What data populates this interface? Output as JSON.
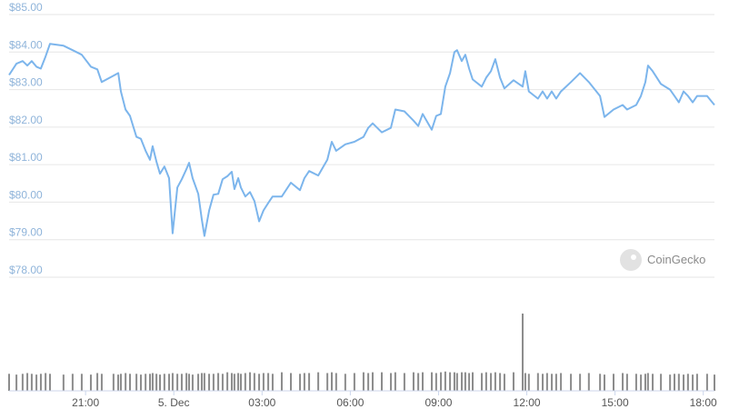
{
  "chart_data": {
    "type": "line",
    "watermark": "CoinGecko",
    "color": "#7cb5ec",
    "volume_color": "#8c8c8c",
    "grid": true,
    "xlim": [
      18.4,
      42.38
    ],
    "xticks": [
      {
        "value": 21,
        "label": "21:00"
      },
      {
        "value": 24,
        "label": "5. Dec"
      },
      {
        "value": 27,
        "label": "03:00"
      },
      {
        "value": 30,
        "label": "06:00"
      },
      {
        "value": 33,
        "label": "09:00"
      },
      {
        "value": 36,
        "label": "12:00"
      },
      {
        "value": 39,
        "label": "15:00"
      },
      {
        "value": 42,
        "label": "18:00"
      }
    ],
    "ylim": [
      78,
      85
    ],
    "yticks": [
      {
        "value": 78,
        "label": "$78.00"
      },
      {
        "value": 79,
        "label": "$79.00"
      },
      {
        "value": 80,
        "label": "$80.00"
      },
      {
        "value": 81,
        "label": "$81.00"
      },
      {
        "value": 82,
        "label": "$82.00"
      },
      {
        "value": 83,
        "label": "$83.00"
      },
      {
        "value": 84,
        "label": "$84.00"
      },
      {
        "value": 85,
        "label": "$85.00"
      }
    ],
    "vlim": [
      0,
      100
    ],
    "x": [
      18.4,
      18.65,
      18.86,
      19.02,
      19.17,
      19.33,
      19.48,
      19.64,
      19.79,
      20.25,
      20.56,
      20.87,
      21.18,
      21.4,
      21.55,
      21.95,
      22.11,
      22.2,
      22.36,
      22.51,
      22.73,
      22.88,
      23.04,
      23.19,
      23.28,
      23.41,
      23.53,
      23.68,
      23.84,
      23.96,
      24.12,
      24.27,
      24.43,
      24.52,
      24.64,
      24.83,
      24.95,
      25.04,
      25.2,
      25.35,
      25.51,
      25.66,
      25.82,
      25.97,
      26.06,
      26.19,
      26.28,
      26.43,
      26.59,
      26.74,
      26.9,
      27.05,
      27.21,
      27.36,
      27.67,
      27.98,
      28.29,
      28.44,
      28.6,
      28.91,
      29.22,
      29.37,
      29.52,
      29.83,
      30.14,
      30.45,
      30.61,
      30.76,
      31.07,
      31.38,
      31.53,
      31.84,
      32.15,
      32.31,
      32.46,
      32.77,
      32.92,
      33.08,
      33.23,
      33.39,
      33.54,
      33.63,
      33.79,
      33.91,
      34.04,
      34.16,
      34.47,
      34.62,
      34.78,
      34.93,
      35.09,
      35.24,
      35.55,
      35.86,
      35.95,
      36.07,
      36.38,
      36.54,
      36.69,
      36.85,
      37.0,
      37.16,
      37.5,
      37.81,
      38.11,
      38.49,
      38.64,
      38.95,
      39.26,
      39.41,
      39.72,
      39.88,
      40.03,
      40.12,
      40.28,
      40.56,
      40.87,
      41.02,
      41.17,
      41.33,
      41.48,
      41.64,
      41.79,
      42.13,
      42.38
    ],
    "values": [
      83.39,
      83.69,
      83.76,
      83.64,
      83.76,
      83.61,
      83.56,
      83.88,
      84.22,
      84.17,
      84.05,
      83.93,
      83.61,
      83.54,
      83.2,
      83.37,
      83.44,
      82.95,
      82.47,
      82.3,
      81.74,
      81.69,
      81.37,
      81.13,
      81.49,
      81.08,
      80.76,
      80.95,
      80.64,
      79.17,
      80.39,
      80.61,
      80.88,
      81.05,
      80.64,
      80.22,
      79.54,
      79.1,
      79.78,
      80.2,
      80.22,
      80.61,
      80.69,
      80.81,
      80.35,
      80.64,
      80.39,
      80.15,
      80.27,
      80.03,
      79.49,
      79.78,
      79.98,
      80.15,
      80.15,
      80.52,
      80.32,
      80.64,
      80.83,
      80.71,
      81.13,
      81.61,
      81.37,
      81.54,
      81.61,
      81.74,
      81.98,
      82.1,
      81.86,
      81.98,
      82.47,
      82.42,
      82.17,
      82.03,
      82.35,
      81.93,
      82.3,
      82.35,
      83.08,
      83.44,
      84.0,
      84.05,
      83.76,
      83.93,
      83.56,
      83.27,
      83.08,
      83.32,
      83.49,
      83.81,
      83.32,
      83.03,
      83.25,
      83.08,
      83.49,
      82.95,
      82.76,
      82.95,
      82.76,
      82.95,
      82.76,
      82.95,
      83.2,
      83.44,
      83.2,
      82.83,
      82.27,
      82.47,
      82.59,
      82.47,
      82.59,
      82.83,
      83.2,
      83.64,
      83.49,
      83.15,
      83.0,
      82.83,
      82.66,
      82.95,
      82.83,
      82.66,
      82.83,
      82.83,
      82.59
    ],
    "volumes": [
      22,
      21,
      22,
      23,
      22,
      21,
      22,
      23,
      22,
      21,
      22,
      22,
      21,
      23,
      22,
      22,
      21,
      22,
      23,
      22,
      22,
      21,
      22,
      22,
      23,
      22,
      21,
      22,
      22,
      23,
      22,
      22,
      23,
      22,
      21,
      22,
      23,
      23,
      22,
      22,
      23,
      22,
      24,
      23,
      22,
      23,
      22,
      23,
      24,
      23,
      22,
      23,
      23,
      22,
      24,
      23,
      22,
      23,
      23,
      24,
      23,
      24,
      23,
      22,
      23,
      24,
      23,
      24,
      24,
      23,
      24,
      23,
      24,
      23,
      24,
      24,
      23,
      24,
      25,
      24,
      24,
      23,
      24,
      24,
      23,
      24,
      23,
      24,
      23,
      24,
      23,
      22,
      24,
      100,
      23,
      22,
      23,
      22,
      23,
      22,
      22,
      23,
      22,
      22,
      23,
      22,
      21,
      22,
      23,
      22,
      22,
      21,
      22,
      23,
      22,
      22,
      21,
      22,
      22,
      21,
      22,
      21,
      22,
      22,
      21
    ]
  }
}
